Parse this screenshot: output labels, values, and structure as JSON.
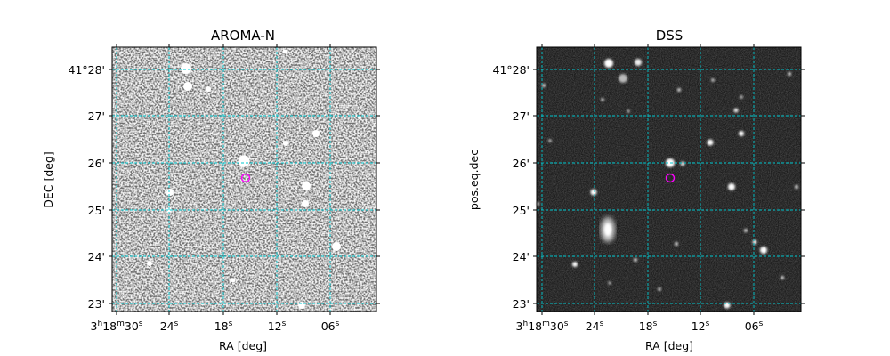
{
  "panels": [
    {
      "title": "AROMA-N",
      "xlabel": "RA [deg]",
      "ylabel": "DEC [deg]",
      "style": "noisy",
      "dec_ticks": [
        "41°28'",
        "27'",
        "26'",
        "25'",
        "24'",
        "23'"
      ],
      "ra_ticks": [
        {
          "h": "3",
          "m": "18",
          "s": "30"
        },
        {
          "s": "24"
        },
        {
          "s": "18"
        },
        {
          "s": "12"
        },
        {
          "s": "06"
        }
      ],
      "marker": {
        "shape": "circle",
        "color": "#ff00ff"
      }
    },
    {
      "title": "DSS",
      "xlabel": "RA [deg]",
      "ylabel": "pos.eq.dec",
      "style": "dark",
      "dec_ticks": [
        "41°28'",
        "27'",
        "26'",
        "25'",
        "24'",
        "23'"
      ],
      "ra_ticks": [
        {
          "h": "3",
          "m": "18",
          "s": "30"
        },
        {
          "s": "24"
        },
        {
          "s": "18"
        },
        {
          "s": "12"
        },
        {
          "s": "06"
        }
      ],
      "marker": {
        "shape": "circle",
        "color": "#ff00ff"
      }
    }
  ],
  "grid_color": "#00c8d0",
  "units": {
    "h": "h",
    "m": "m",
    "s": "s"
  }
}
